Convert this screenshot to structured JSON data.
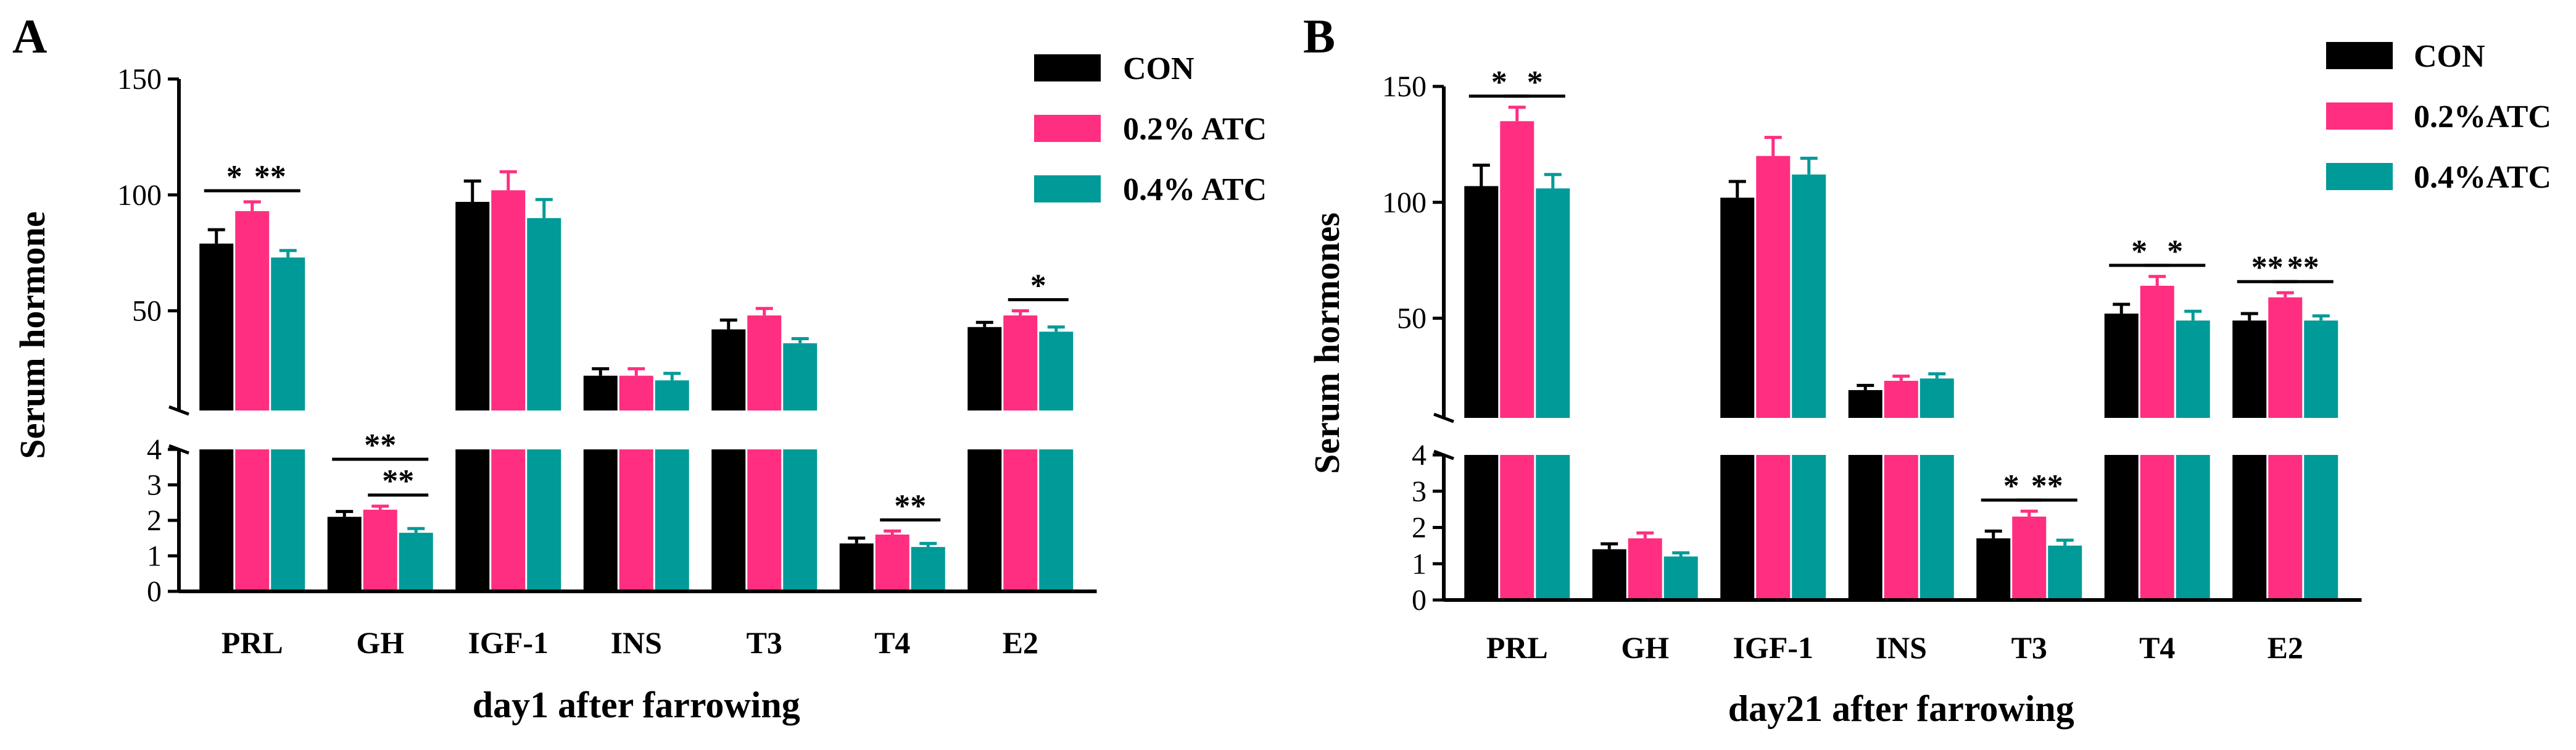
{
  "figure": {
    "colors": {
      "CON": "#000000",
      "ATC02": "#ff2e80",
      "ATC04": "#009a98",
      "axis": "#000000"
    }
  },
  "chart_data": [
    {
      "panel_label": "A",
      "type": "bar",
      "xlabel": "day1 after farrowing",
      "ylabel": "Serum hormone",
      "categories": [
        "PRL",
        "GH",
        "IGF-1",
        "INS",
        "T3",
        "T4",
        "E2"
      ],
      "axis_break": {
        "lower_ylim": [
          0,
          4
        ],
        "upper_ylim": [
          7,
          150
        ]
      },
      "lower_ticks": [
        "0",
        "1",
        "2",
        "3",
        "4"
      ],
      "upper_ticks": [
        "50",
        "100",
        "150"
      ],
      "series": [
        {
          "name": "CON",
          "color": "#000000",
          "values": [
            79,
            2.1,
            97,
            22,
            42,
            1.35,
            43
          ],
          "errors": [
            6,
            0.15,
            9,
            3,
            4,
            0.15,
            2
          ]
        },
        {
          "name": "0.2% ATC",
          "color": "#ff2e80",
          "values": [
            93,
            2.3,
            102,
            22,
            48,
            1.6,
            48
          ],
          "errors": [
            4,
            0.1,
            8,
            3,
            3,
            0.1,
            2
          ]
        },
        {
          "name": "0.4% ATC",
          "color": "#009a98",
          "values": [
            73,
            1.65,
            90,
            20,
            36,
            1.25,
            41
          ],
          "errors": [
            3,
            0.12,
            8,
            3,
            2,
            0.1,
            2
          ]
        }
      ],
      "significance": [
        {
          "category": "PRL",
          "from": "CON",
          "to": "0.2% ATC",
          "label": "*"
        },
        {
          "category": "PRL",
          "from": "0.2% ATC",
          "to": "0.4% ATC",
          "label": "**"
        },
        {
          "category": "GH",
          "from": "CON",
          "to": "0.4% ATC",
          "label": "**"
        },
        {
          "category": "GH",
          "from": "0.2% ATC",
          "to": "0.4% ATC",
          "label": "**"
        },
        {
          "category": "T4",
          "from": "0.2% ATC",
          "to": "0.4% ATC",
          "label": "**"
        },
        {
          "category": "E2",
          "from": "0.2% ATC",
          "to": "0.4% ATC",
          "label": "*"
        }
      ]
    },
    {
      "panel_label": "B",
      "type": "bar",
      "xlabel": "day21 after farrowing",
      "ylabel": "Serum hormones",
      "categories": [
        "PRL",
        "GH",
        "IGF-1",
        "INS",
        "T3",
        "T4",
        "E2"
      ],
      "axis_break": {
        "lower_ylim": [
          0,
          4
        ],
        "upper_ylim": [
          7,
          150
        ]
      },
      "lower_ticks": [
        "0",
        "1",
        "2",
        "3",
        "4"
      ],
      "upper_ticks": [
        "50",
        "100",
        "150"
      ],
      "series": [
        {
          "name": "CON",
          "color": "#000000",
          "values": [
            107,
            1.4,
            102,
            19,
            1.7,
            52,
            49
          ],
          "errors": [
            9,
            0.15,
            7,
            2,
            0.2,
            4,
            3
          ]
        },
        {
          "name": "0.2%ATC",
          "color": "#ff2e80",
          "values": [
            135,
            1.7,
            120,
            23,
            2.3,
            64,
            59
          ],
          "errors": [
            6,
            0.15,
            8,
            2,
            0.15,
            4,
            2
          ]
        },
        {
          "name": "0.4%ATC",
          "color": "#009a98",
          "values": [
            106,
            1.2,
            112,
            24,
            1.5,
            49,
            49
          ],
          "errors": [
            6,
            0.1,
            7,
            2,
            0.15,
            4,
            2
          ]
        }
      ],
      "significance": [
        {
          "category": "PRL",
          "from": "CON",
          "to": "0.2%ATC",
          "label": "*"
        },
        {
          "category": "PRL",
          "from": "0.2%ATC",
          "to": "0.4%ATC",
          "label": "*"
        },
        {
          "category": "T3",
          "from": "CON",
          "to": "0.2%ATC",
          "label": "*"
        },
        {
          "category": "T3",
          "from": "0.2%ATC",
          "to": "0.4%ATC",
          "label": "**"
        },
        {
          "category": "T4",
          "from": "CON",
          "to": "0.2%ATC",
          "label": "*"
        },
        {
          "category": "T4",
          "from": "0.2%ATC",
          "to": "0.4%ATC",
          "label": "*"
        },
        {
          "category": "E2",
          "from": "CON",
          "to": "0.2%ATC",
          "label": "**"
        },
        {
          "category": "E2",
          "from": "0.2%ATC",
          "to": "0.4%ATC",
          "label": "**"
        }
      ]
    }
  ]
}
